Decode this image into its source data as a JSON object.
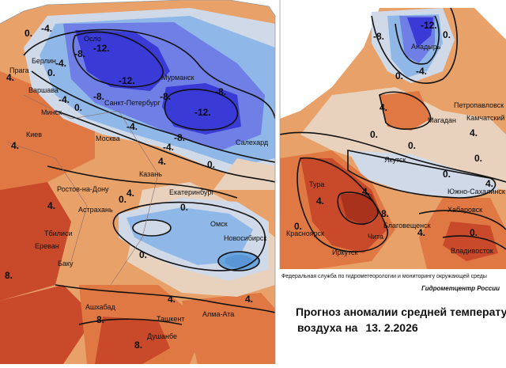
{
  "maps": {
    "left_cities": [
      {
        "name": "Осло"
      },
      {
        "name": "Берлин"
      },
      {
        "name": "Прага"
      },
      {
        "name": "Варшава"
      },
      {
        "name": "Санкт-Петербург"
      },
      {
        "name": "Мурманск"
      },
      {
        "name": "Минск"
      },
      {
        "name": "Салехард"
      },
      {
        "name": "Киев"
      },
      {
        "name": "Москва"
      },
      {
        "name": "Казань"
      },
      {
        "name": "Ростов-на-Дону"
      },
      {
        "name": "Екатеринбург"
      },
      {
        "name": "Астрахань"
      },
      {
        "name": "Омск"
      },
      {
        "name": "Новосибирск"
      },
      {
        "name": "Тбилиси"
      },
      {
        "name": "Ереван"
      },
      {
        "name": "Баку"
      },
      {
        "name": "Ашхабад"
      },
      {
        "name": "Ташкент"
      },
      {
        "name": "Алма-Ата"
      },
      {
        "name": "Душанбе"
      }
    ],
    "right_cities": [
      {
        "name": "Анадырь"
      },
      {
        "name": "Петропавловск"
      },
      {
        "name": "Магадан"
      },
      {
        "name": "Камчатский"
      },
      {
        "name": "Якутск"
      },
      {
        "name": "Южно-Сахалинск"
      },
      {
        "name": "Хабаровск"
      },
      {
        "name": "Тура"
      },
      {
        "name": "Красноярск"
      },
      {
        "name": "Благовещенск"
      },
      {
        "name": "Чита"
      },
      {
        "name": "Иркутск"
      },
      {
        "name": "Владивосток"
      }
    ],
    "isoline_labels": [
      "-4.",
      "-8.",
      "-12.",
      "0.",
      "4.",
      "8."
    ],
    "colors": {
      "deep_blue": "#3a3ad6",
      "blue": "#6f7fe6",
      "light_blue": "#8fb8e8",
      "pale_blue": "#cfd9e8",
      "beige": "#e8d2bd",
      "orange_light": "#e9a16a",
      "orange": "#e07844",
      "red": "#c84a2a",
      "dark_red": "#a8321c"
    }
  },
  "caption": {
    "agency": "Федеральная служба по гидрометеорологии и мониторингу окружающей среды",
    "center": "Гидрометцентр России",
    "title_line1": "Прогноз аномалии средней температуры",
    "title_line2": "воздуха на",
    "date": "13. 2.2026"
  }
}
